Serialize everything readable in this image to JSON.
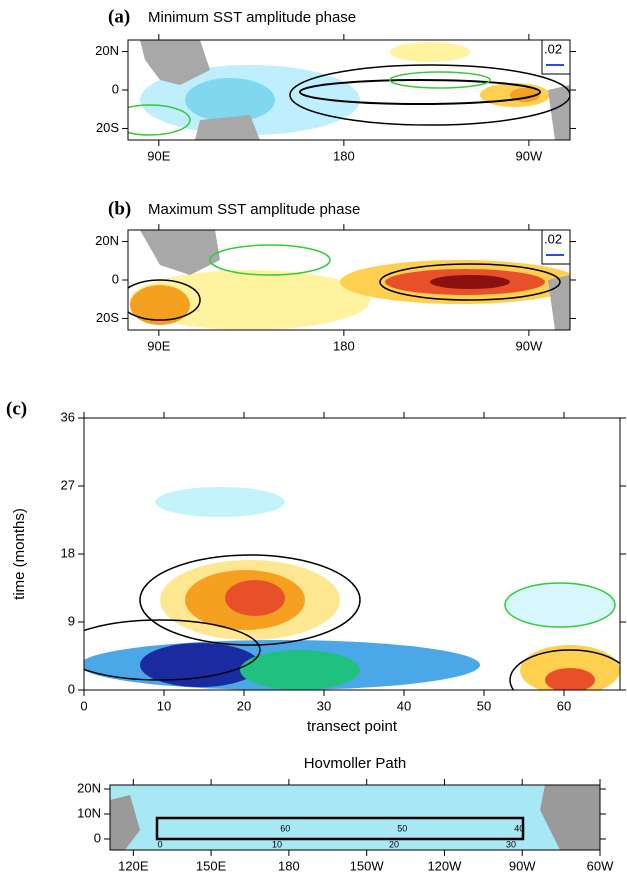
{
  "chart_data": [
    {
      "type": "map",
      "label": "(a)",
      "title": "Minimum SST amplitude phase",
      "reference_vector_label": ".02",
      "xlim": [
        75,
        290
      ],
      "xticks": [
        {
          "value": 90,
          "label": "90E"
        },
        180,
        {
          "value": 270,
          "label": "90W"
        }
      ],
      "ylim": [
        -26,
        26
      ],
      "yticks": [
        {
          "value": 20,
          "label": "20N"
        },
        0,
        {
          "value": -20,
          "label": "20S"
        }
      ]
    },
    {
      "type": "map",
      "label": "(b)",
      "title": "Maximum SST amplitude phase",
      "reference_vector_label": ".02",
      "xlim": [
        75,
        290
      ],
      "xticks": [
        {
          "value": 90,
          "label": "90E"
        },
        180,
        {
          "value": 270,
          "label": "90W"
        }
      ],
      "ylim": [
        -26,
        26
      ],
      "yticks": [
        {
          "value": 20,
          "label": "20N"
        },
        0,
        {
          "value": -20,
          "label": "20S"
        }
      ]
    },
    {
      "type": "hovmoller",
      "label": "(c)",
      "xlabel": "transect point",
      "ylabel": "time (months)",
      "xlim": [
        0,
        67
      ],
      "xticks": [
        0,
        10,
        20,
        30,
        40,
        50,
        60
      ],
      "ylim": [
        0,
        36
      ],
      "yticks": [
        0,
        9,
        18,
        27,
        36
      ]
    },
    {
      "type": "path_map",
      "title": "Hovmoller Path",
      "path_labels": [
        "0",
        "10",
        "20",
        "30",
        "40",
        "50",
        "60"
      ],
      "xlim": [
        111,
        300
      ],
      "xticks": [
        {
          "value": 120,
          "label": "120E"
        },
        {
          "value": 150,
          "label": "150E"
        },
        180,
        {
          "value": 210,
          "label": "150W"
        },
        {
          "value": 240,
          "label": "120W"
        },
        {
          "value": 270,
          "label": "90W"
        },
        {
          "value": 300,
          "label": "60W"
        }
      ],
      "ylim": [
        -4.4,
        21.6
      ],
      "yticks": [
        0,
        {
          "value": 10,
          "label": "10N"
        },
        {
          "value": 20,
          "label": "20N"
        }
      ]
    }
  ]
}
